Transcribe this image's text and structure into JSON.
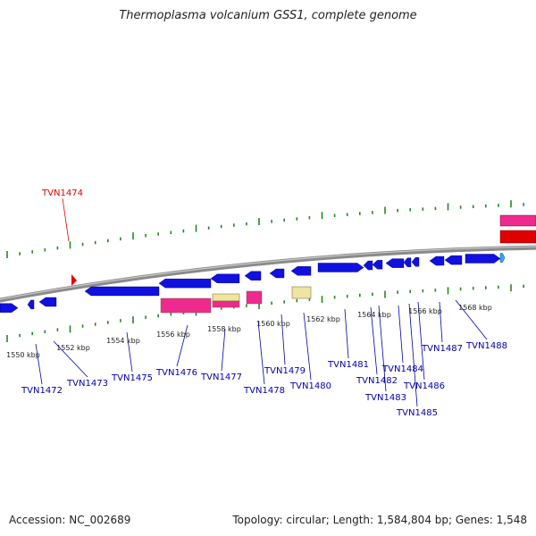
{
  "title": "Thermoplasma volcanium GSS1, complete genome",
  "footer": {
    "accession": "Accession: NC_002689",
    "topology": "Topology: circular; Length: 1,584,804 bp; Genes: 1,548"
  },
  "colors": {
    "forward_gene": "#1010e0",
    "reverse_gene": "#ee2a8e",
    "pseudo_gene": "#eee5a0",
    "highlight": "#e00000",
    "label": "#0000aa",
    "tick": "#1f8a1f",
    "backbone": "#8a8a8a"
  },
  "kbp_labels": [
    "1550 kbp",
    "1552 kbp",
    "1554 kbp",
    "1556 kbp",
    "1558 kbp",
    "1560 kbp",
    "1562 kbp",
    "1564 kbp",
    "1566 kbp",
    "1568 kbp"
  ],
  "gene_labels": [
    "TVN1472",
    "TVN1473",
    "TVN1475",
    "TVN1476",
    "TVN1477",
    "TVN1478",
    "TVN1479",
    "TVN1480",
    "TVN1481",
    "TVN1482",
    "TVN1483",
    "TVN1484",
    "TVN1485",
    "TVN1486",
    "TVN1487",
    "TVN1488"
  ],
  "highlight_label": "TVN1474"
}
